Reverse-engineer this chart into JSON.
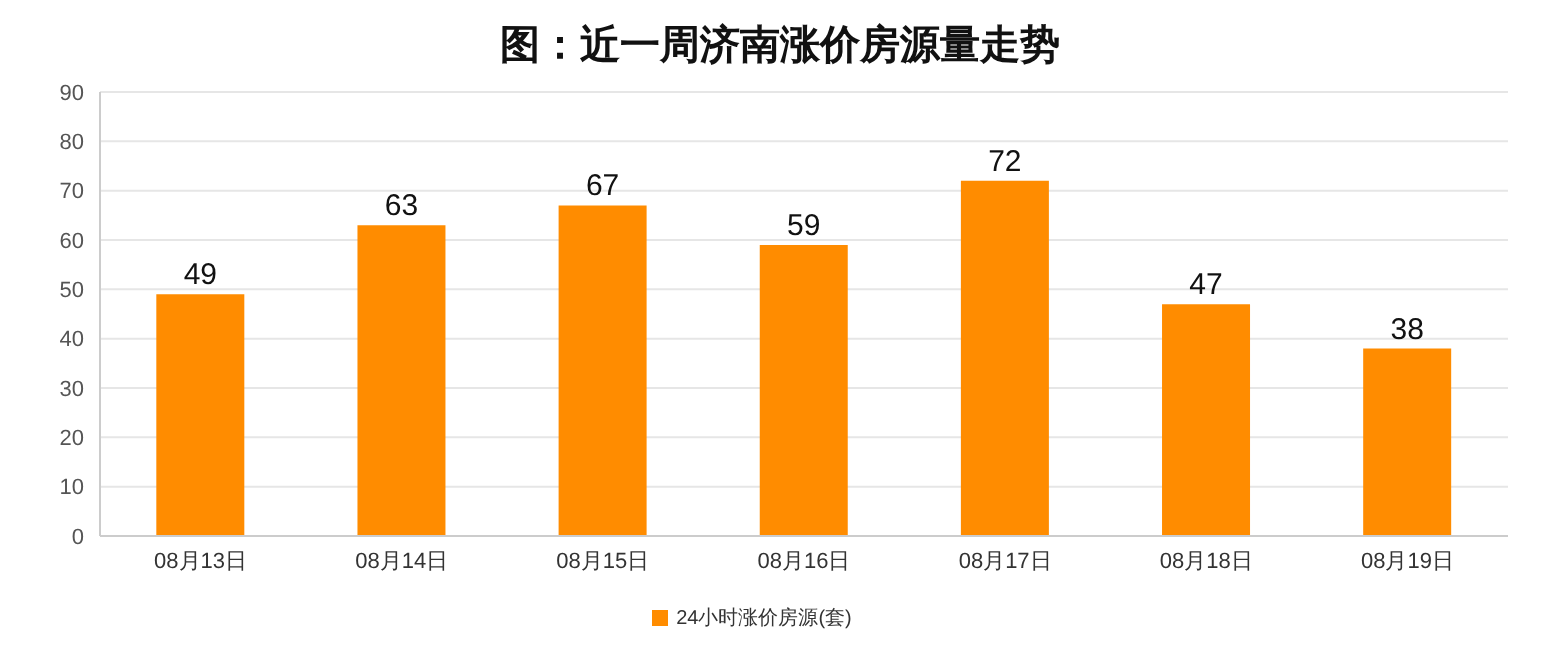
{
  "chart_data": {
    "type": "bar",
    "title": "图：近一周济南涨价房源量走势",
    "categories": [
      "08月13日",
      "08月14日",
      "08月15日",
      "08月16日",
      "08月17日",
      "08月18日",
      "08月19日"
    ],
    "series": [
      {
        "name": "24小时涨价房源(套)",
        "color": "#ff8c00",
        "values": [
          49,
          63,
          67,
          59,
          72,
          47,
          38
        ]
      }
    ],
    "ylim": [
      0,
      90
    ],
    "yticks": [
      0,
      10,
      20,
      30,
      40,
      50,
      60,
      70,
      80,
      90
    ],
    "grid": "y",
    "legend": "bottom",
    "data_labels": true
  }
}
